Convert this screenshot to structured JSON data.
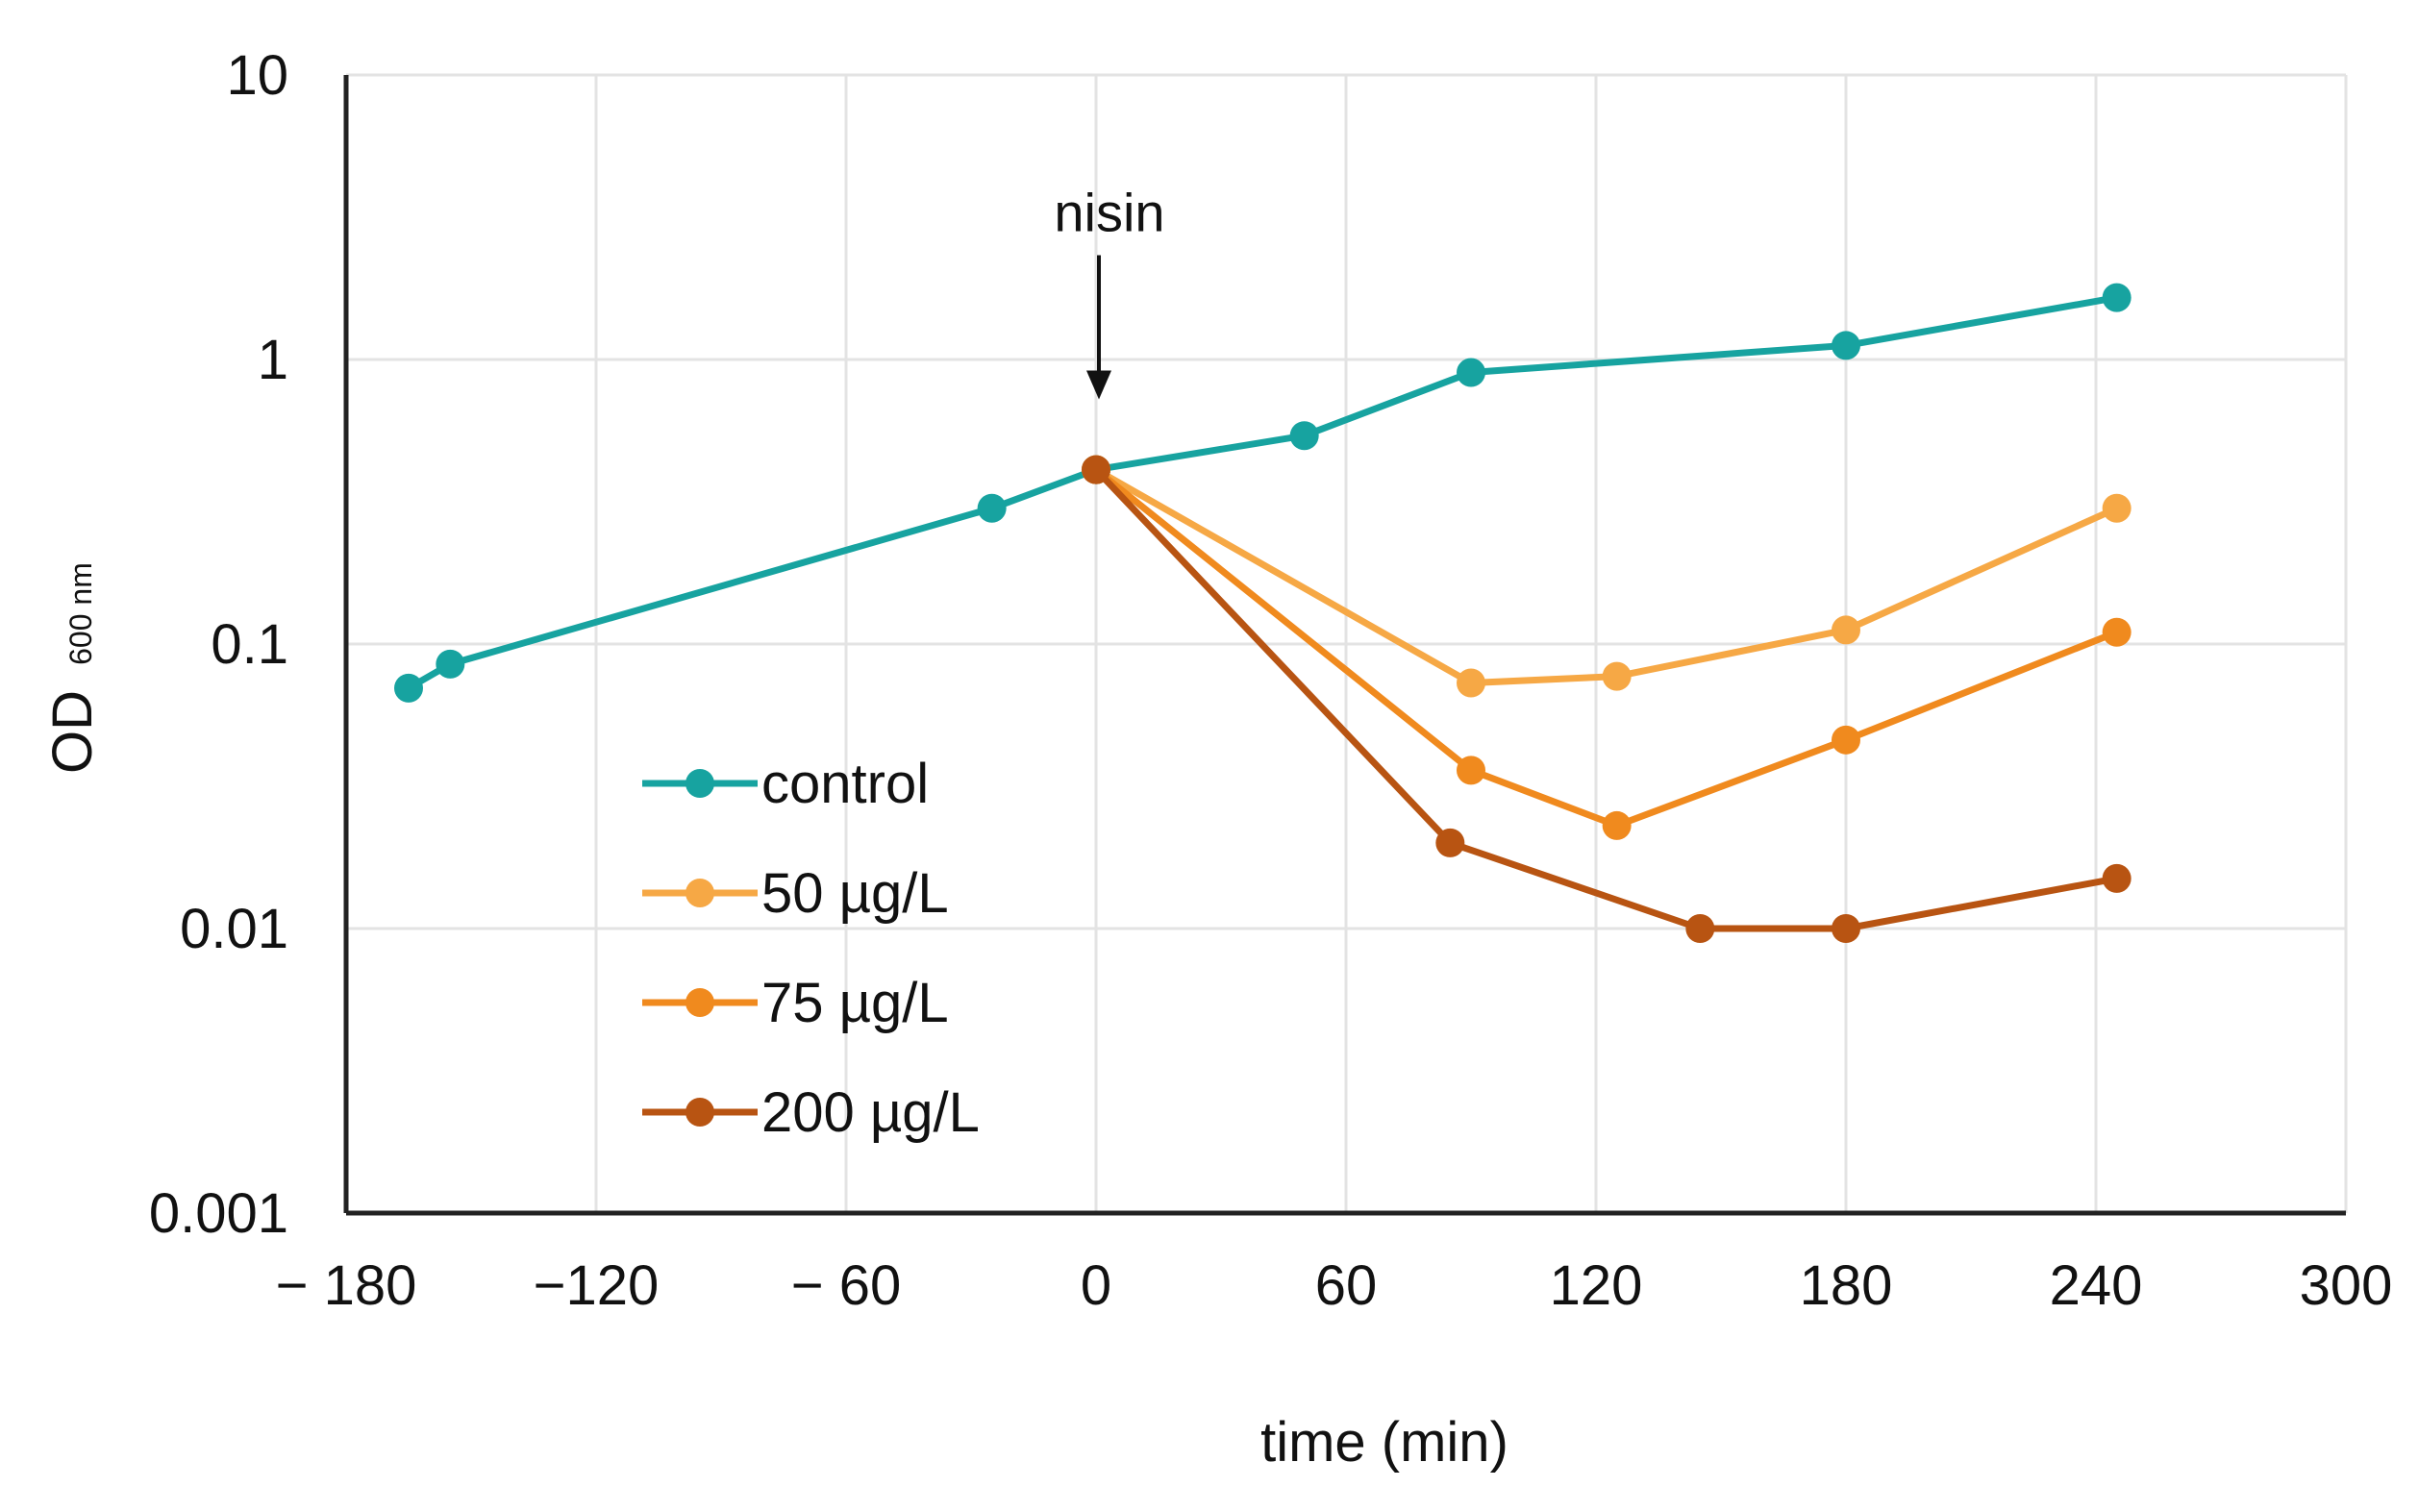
{
  "chart_data": {
    "type": "line",
    "title": "",
    "xlabel": "time (min)",
    "ylabel": "OD",
    "ylabel_subscript": "600 nm",
    "xlim": [
      -180,
      300
    ],
    "ylim": [
      0.001,
      10
    ],
    "yscale": "log",
    "grid": true,
    "legend_position": "lower-left",
    "x_ticks": [
      -180,
      -120,
      -60,
      0,
      60,
      120,
      180,
      240,
      300
    ],
    "x_tick_labels": [
      "− 180",
      "−120",
      "− 60",
      "0",
      "60",
      "120",
      "180",
      "240",
      "300"
    ],
    "y_ticks": [
      0.001,
      0.01,
      0.1,
      1,
      10
    ],
    "y_tick_labels": [
      "0.001",
      "0.01",
      "0.1",
      "1",
      "10"
    ],
    "annotations": [
      {
        "text": "nisin",
        "x": 0,
        "y": 0.42,
        "type": "arrow-down"
      }
    ],
    "series": [
      {
        "name": "control",
        "color": "#17a3a0",
        "points": [
          {
            "x": -165,
            "y": 0.07
          },
          {
            "x": -155,
            "y": 0.085
          },
          {
            "x": -25,
            "y": 0.3
          },
          {
            "x": 0,
            "y": 0.41
          },
          {
            "x": 50,
            "y": 0.54
          },
          {
            "x": 90,
            "y": 0.9
          },
          {
            "x": 180,
            "y": 1.12
          },
          {
            "x": 245,
            "y": 1.65
          }
        ]
      },
      {
        "name": "50 µg/L",
        "color": "#f6a845",
        "points": [
          {
            "x": 0,
            "y": 0.41
          },
          {
            "x": 90,
            "y": 0.073
          },
          {
            "x": 125,
            "y": 0.077
          },
          {
            "x": 180,
            "y": 0.112
          },
          {
            "x": 245,
            "y": 0.3
          }
        ]
      },
      {
        "name": "75 µg/L",
        "color": "#f08a1e",
        "points": [
          {
            "x": 0,
            "y": 0.41
          },
          {
            "x": 90,
            "y": 0.036
          },
          {
            "x": 125,
            "y": 0.023
          },
          {
            "x": 180,
            "y": 0.046
          },
          {
            "x": 245,
            "y": 0.11
          }
        ]
      },
      {
        "name": "200 µg/L",
        "color": "#b85412",
        "points": [
          {
            "x": 0,
            "y": 0.41
          },
          {
            "x": 85,
            "y": 0.02
          },
          {
            "x": 145,
            "y": 0.01
          },
          {
            "x": 180,
            "y": 0.01
          },
          {
            "x": 245,
            "y": 0.015
          }
        ]
      }
    ]
  }
}
